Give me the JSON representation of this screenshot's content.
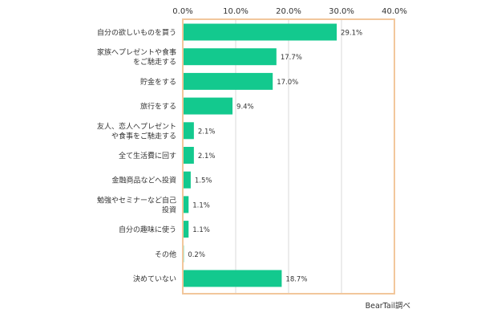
{
  "chart_data": {
    "type": "bar",
    "orientation": "horizontal",
    "categories": [
      [
        "自分の欲しいものを買う"
      ],
      [
        "家族へプレゼントや食事",
        "をご馳走する"
      ],
      [
        "貯金をする"
      ],
      [
        "旅行をする"
      ],
      [
        "友人、恋人へプレゼント",
        "や食事をご馳走する"
      ],
      [
        "全て生活費に回す"
      ],
      [
        "金融商品などへ投資"
      ],
      [
        "勉強やセミナーなど自己",
        "投資"
      ],
      [
        "自分の趣味に使う"
      ],
      [
        "その他"
      ],
      [
        "決めていない"
      ]
    ],
    "values": [
      29.1,
      17.7,
      17.0,
      9.4,
      2.1,
      2.1,
      1.5,
      1.1,
      1.1,
      0.2,
      18.7
    ],
    "data_labels": [
      "29.1%",
      "17.7%",
      "17.0%",
      "9.4%",
      "2.1%",
      "2.1%",
      "1.5%",
      "1.1%",
      "1.1%",
      "0.2%",
      "18.7%"
    ],
    "xlim": [
      0,
      40
    ],
    "x_ticks": [
      0,
      10,
      20,
      30,
      40
    ],
    "x_tick_labels": [
      "0.0%",
      "10.0%",
      "20.0%",
      "30.0%",
      "40.0%"
    ],
    "x_axis_position": "top",
    "grid": true,
    "legend": "none",
    "source": "BearTail調べ",
    "colors": {
      "bar": "#13C98E",
      "frame": "#F2C79C",
      "grid": "#d9d9d9"
    }
  }
}
